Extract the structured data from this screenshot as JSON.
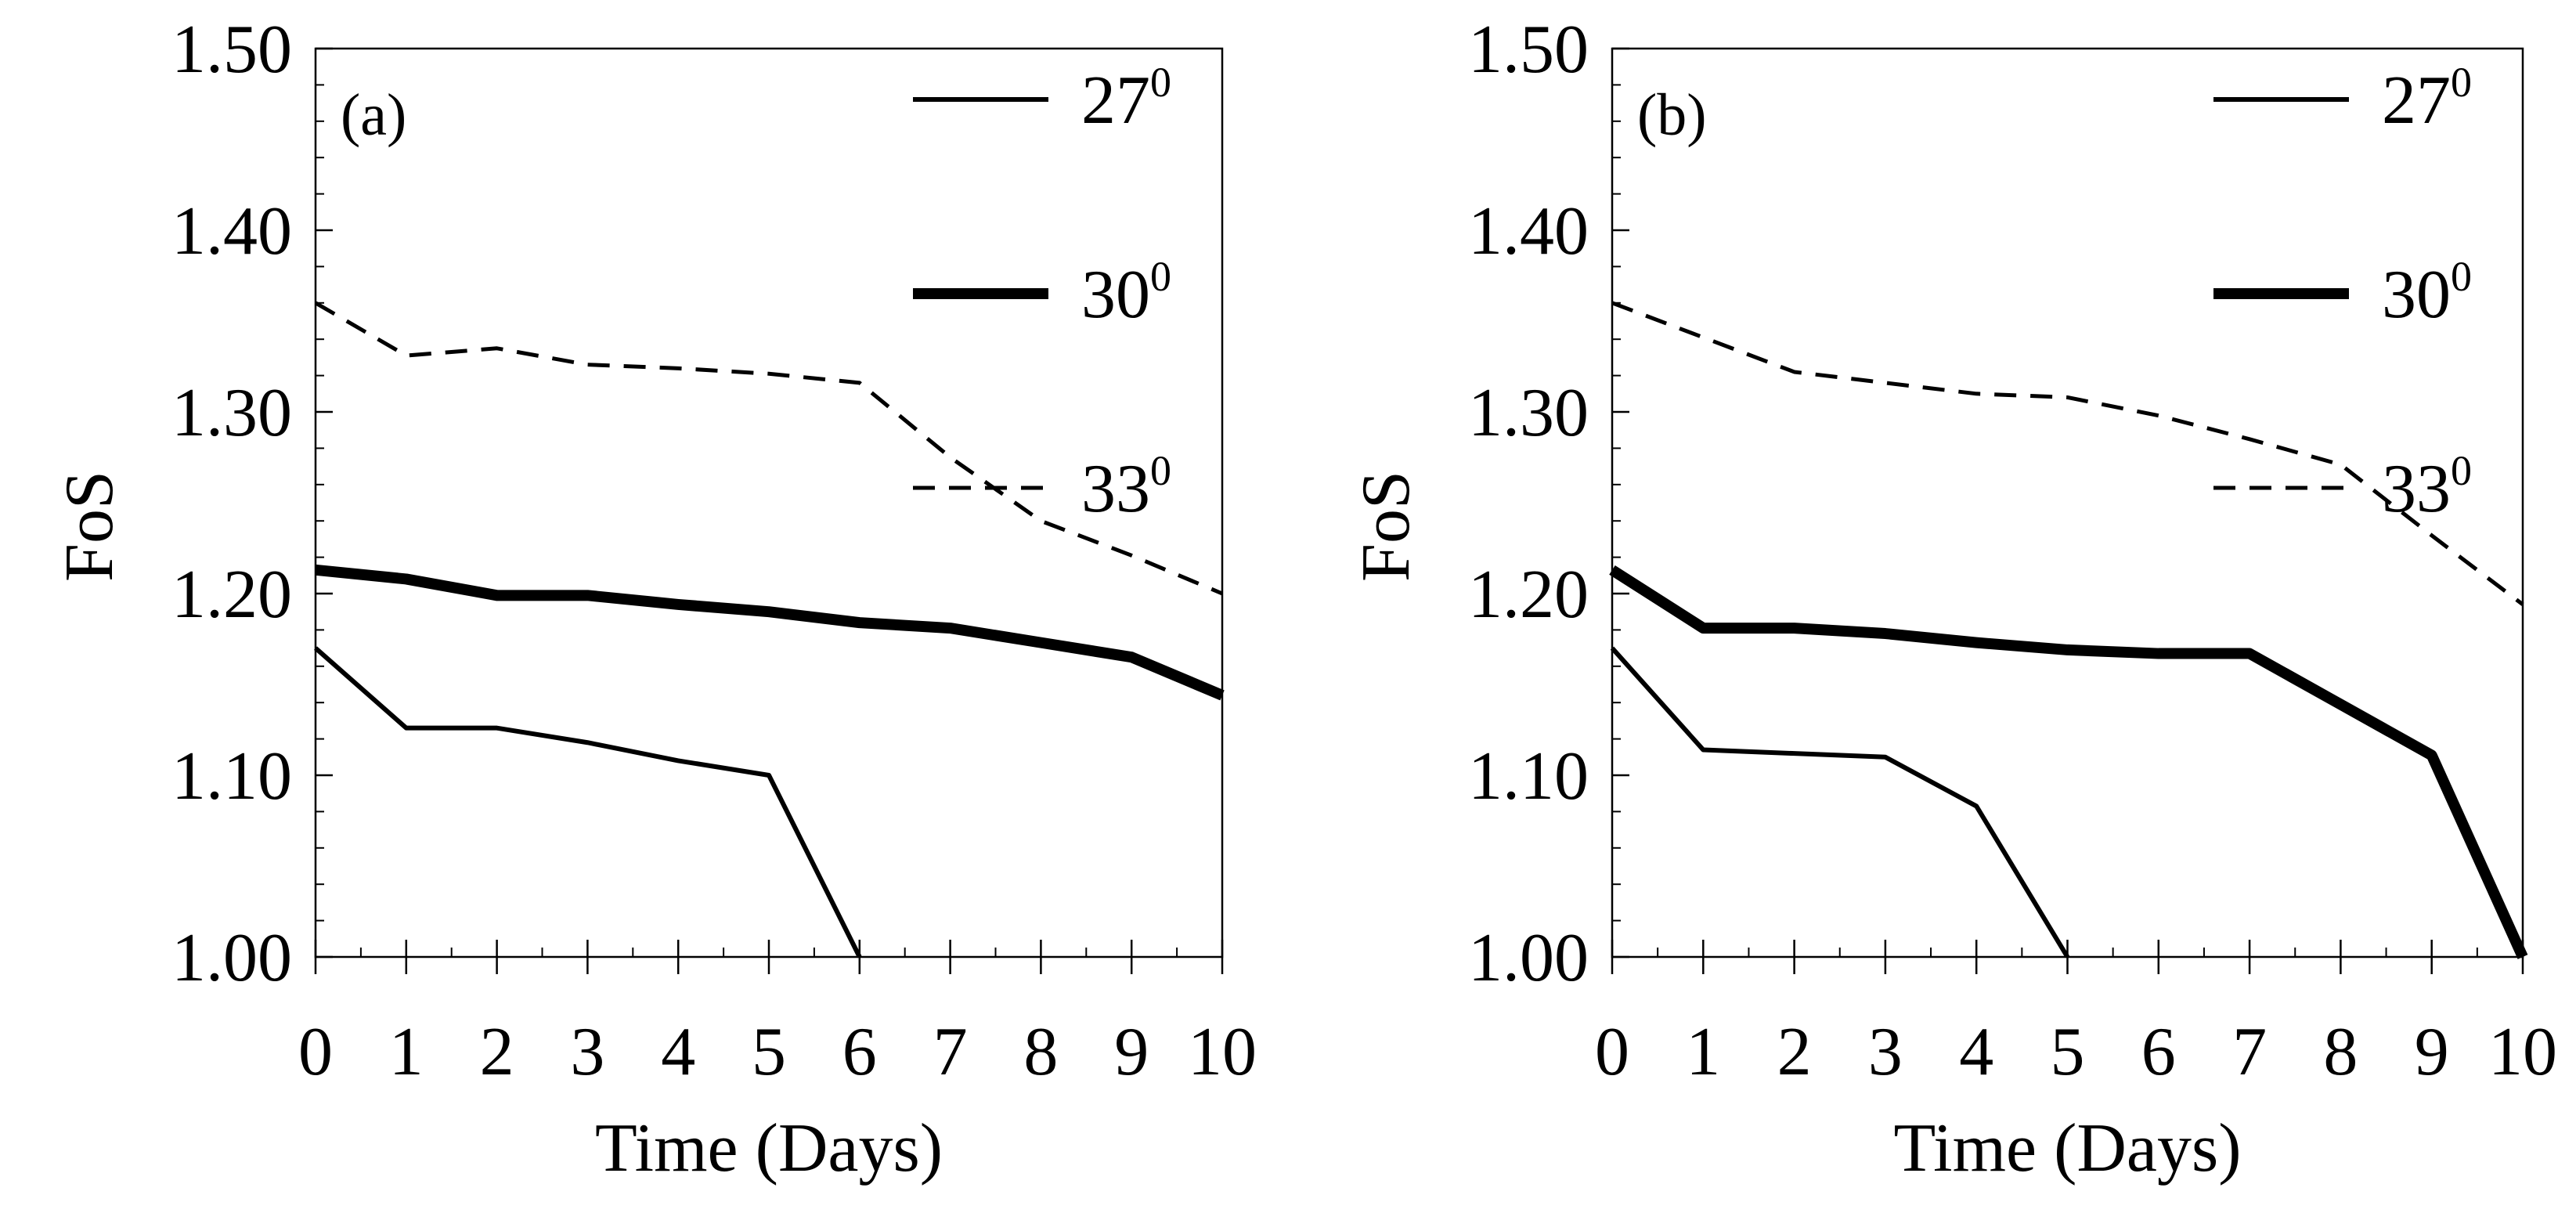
{
  "chart_data": [
    {
      "type": "line",
      "panel_label": "(a)",
      "xlabel": "Time (Days)",
      "ylabel": "FoS",
      "xlim": [
        0,
        10
      ],
      "ylim": [
        1.0,
        1.5
      ],
      "x_ticks": [
        "0",
        "1",
        "2",
        "3",
        "4",
        "5",
        "6",
        "7",
        "8",
        "9",
        "10"
      ],
      "y_ticks": [
        "1.00",
        "1.10",
        "1.20",
        "1.30",
        "1.40",
        "1.50"
      ],
      "legend_position": "top-right",
      "series": [
        {
          "name": "27",
          "sup": "0",
          "style": "thin",
          "x": [
            0,
            1,
            2,
            3,
            4,
            5,
            6
          ],
          "values": [
            1.17,
            1.126,
            1.126,
            1.118,
            1.108,
            1.1,
            1.0
          ]
        },
        {
          "name": "30",
          "sup": "0",
          "style": "thick",
          "x": [
            0,
            1,
            2,
            3,
            4,
            5,
            6,
            7,
            8,
            9,
            10
          ],
          "values": [
            1.213,
            1.208,
            1.199,
            1.199,
            1.194,
            1.19,
            1.184,
            1.181,
            1.173,
            1.165,
            1.144
          ]
        },
        {
          "name": "33",
          "sup": "0",
          "style": "dashed",
          "x": [
            0,
            1,
            2,
            3,
            4,
            5,
            6,
            7,
            8,
            9,
            10
          ],
          "values": [
            1.36,
            1.331,
            1.335,
            1.326,
            1.324,
            1.321,
            1.316,
            1.275,
            1.24,
            1.221,
            1.2
          ]
        }
      ]
    },
    {
      "type": "line",
      "panel_label": "(b)",
      "xlabel": "Time (Days)",
      "ylabel": "FoS",
      "xlim": [
        0,
        10
      ],
      "ylim": [
        1.0,
        1.5
      ],
      "x_ticks": [
        "0",
        "1",
        "2",
        "3",
        "4",
        "5",
        "6",
        "7",
        "8",
        "9",
        "10"
      ],
      "y_ticks": [
        "1.00",
        "1.10",
        "1.20",
        "1.30",
        "1.40",
        "1.50"
      ],
      "legend_position": "top-right",
      "series": [
        {
          "name": "27",
          "sup": "0",
          "style": "thin",
          "x": [
            0,
            1,
            2,
            3,
            4,
            5
          ],
          "values": [
            1.17,
            1.114,
            1.112,
            1.11,
            1.083,
            1.0
          ]
        },
        {
          "name": "30",
          "sup": "0",
          "style": "thick",
          "x": [
            0,
            1,
            2,
            3,
            4,
            5,
            6,
            7,
            8,
            9,
            10
          ],
          "values": [
            1.213,
            1.181,
            1.181,
            1.178,
            1.173,
            1.169,
            1.167,
            1.167,
            1.139,
            1.111,
            1.0
          ]
        },
        {
          "name": "33",
          "sup": "0",
          "style": "dashed",
          "x": [
            0,
            1,
            2,
            3,
            4,
            5,
            6,
            7,
            8,
            9,
            10
          ],
          "values": [
            1.36,
            1.341,
            1.322,
            1.316,
            1.31,
            1.308,
            1.298,
            1.285,
            1.271,
            1.232,
            1.194
          ]
        }
      ]
    }
  ]
}
